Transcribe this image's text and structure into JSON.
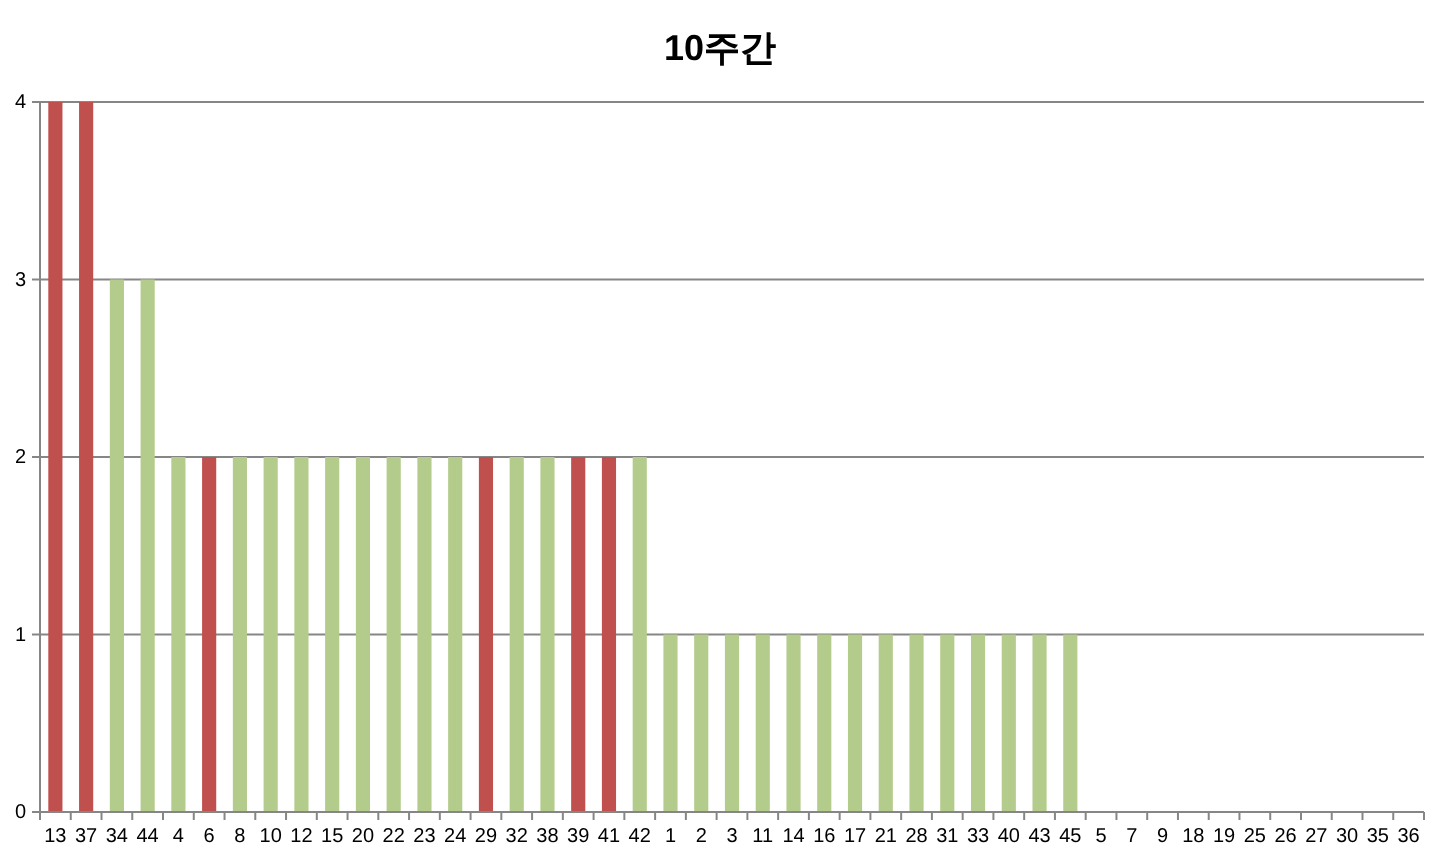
{
  "chart_data": {
    "type": "bar",
    "title": "10주간",
    "categories": [
      "13",
      "37",
      "34",
      "44",
      "4",
      "6",
      "8",
      "10",
      "12",
      "15",
      "20",
      "22",
      "23",
      "24",
      "29",
      "32",
      "38",
      "39",
      "41",
      "42",
      "1",
      "2",
      "3",
      "11",
      "14",
      "16",
      "17",
      "21",
      "28",
      "31",
      "33",
      "40",
      "43",
      "45",
      "5",
      "7",
      "9",
      "18",
      "19",
      "25",
      "26",
      "27",
      "30",
      "35",
      "36"
    ],
    "values": [
      4,
      4,
      3,
      3,
      2,
      2,
      2,
      2,
      2,
      2,
      2,
      2,
      2,
      2,
      2,
      2,
      2,
      2,
      2,
      2,
      1,
      1,
      1,
      1,
      1,
      1,
      1,
      1,
      1,
      1,
      1,
      1,
      1,
      1,
      0,
      0,
      0,
      0,
      0,
      0,
      0,
      0,
      0,
      0,
      0
    ],
    "colors": [
      "#c0504d",
      "#c0504d",
      "#b3cc8c",
      "#b3cc8c",
      "#b3cc8c",
      "#c0504d",
      "#b3cc8c",
      "#b3cc8c",
      "#b3cc8c",
      "#b3cc8c",
      "#b3cc8c",
      "#b3cc8c",
      "#b3cc8c",
      "#b3cc8c",
      "#c0504d",
      "#b3cc8c",
      "#b3cc8c",
      "#c0504d",
      "#c0504d",
      "#b3cc8c",
      "#b3cc8c",
      "#b3cc8c",
      "#b3cc8c",
      "#b3cc8c",
      "#b3cc8c",
      "#b3cc8c",
      "#b3cc8c",
      "#b3cc8c",
      "#b3cc8c",
      "#b3cc8c",
      "#b3cc8c",
      "#b3cc8c",
      "#b3cc8c",
      "#b3cc8c",
      "#b3cc8c",
      "#b3cc8c",
      "#b3cc8c",
      "#b3cc8c",
      "#b3cc8c",
      "#b3cc8c",
      "#b3cc8c",
      "#b3cc8c",
      "#b3cc8c",
      "#b3cc8c",
      "#b3cc8c"
    ],
    "ylim": [
      0,
      4
    ],
    "yticks": [
      0,
      1,
      2,
      3,
      4
    ],
    "grid": "y"
  }
}
